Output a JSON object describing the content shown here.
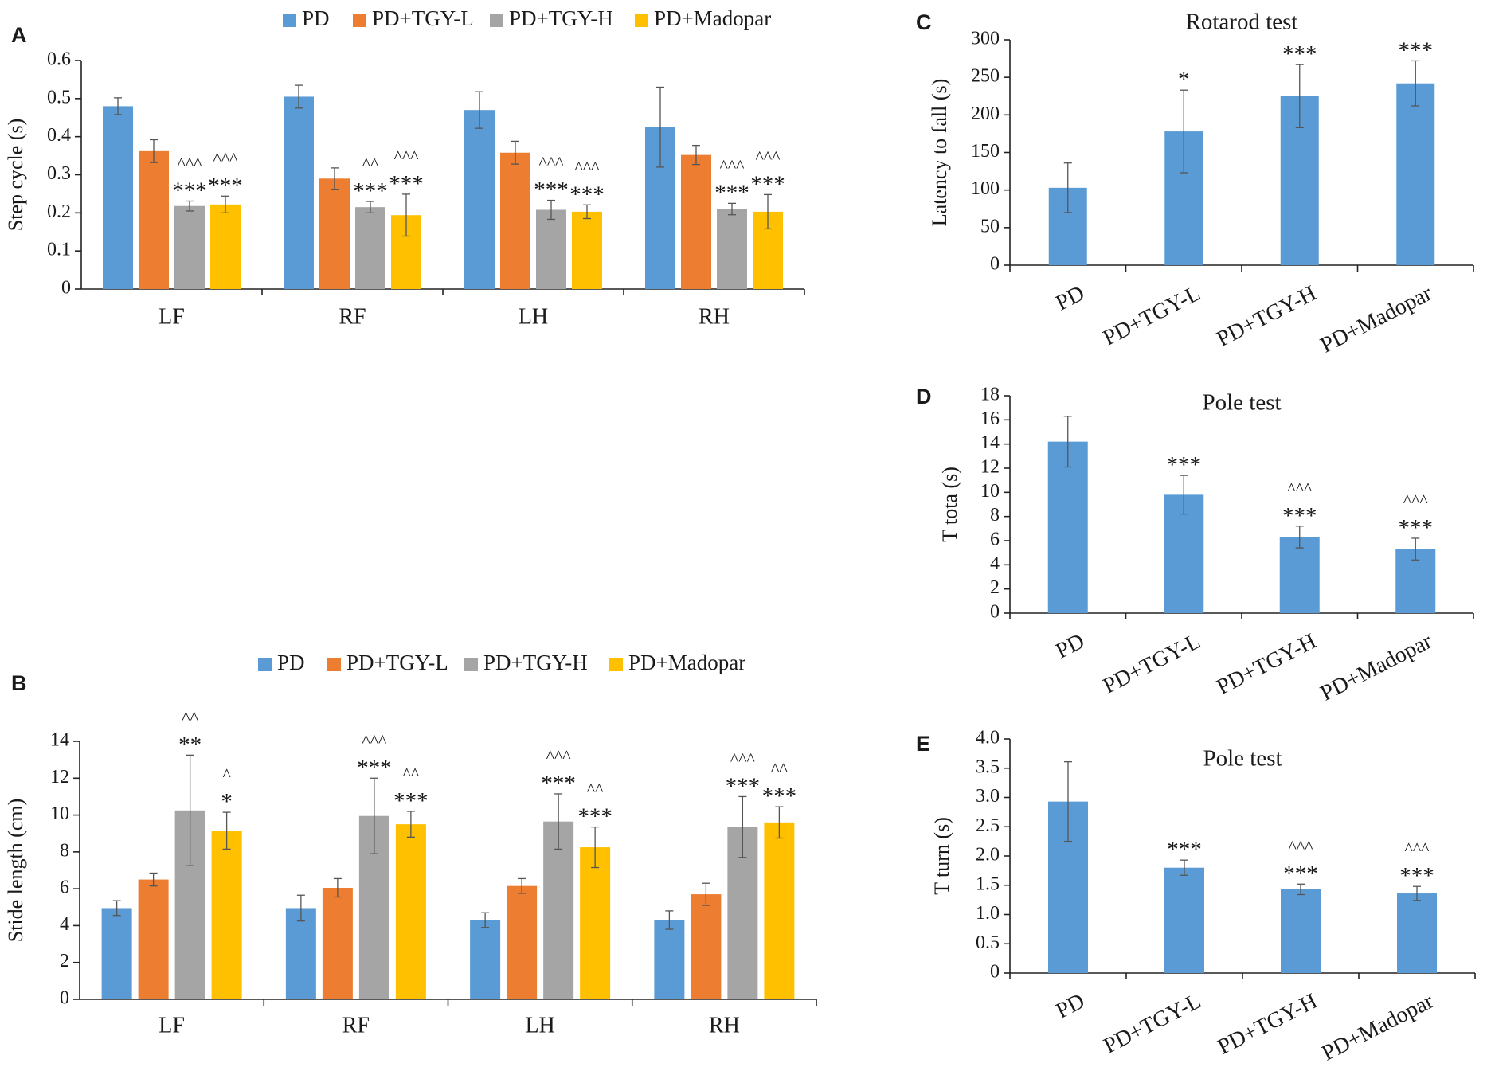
{
  "colors": {
    "PD": "#5B9BD5",
    "PD+TGY-L": "#ED7D31",
    "PD+TGY-H": "#A5A5A5",
    "PD+Madopar": "#FFC000",
    "axis": "#222222",
    "errorbar": "#555555"
  },
  "chart_data": [
    {
      "id": "A",
      "type": "bar",
      "panel_label": "A",
      "title": "",
      "ylabel": "Step cycle (s)",
      "xlabel": "",
      "ylim": [
        0,
        0.6
      ],
      "yticks": [
        0,
        0.1,
        0.2,
        0.3,
        0.4,
        0.5,
        0.6
      ],
      "ytick_labels": [
        "0",
        "0.1",
        "0.2",
        "0.3",
        "0.4",
        "0.5",
        "0.6"
      ],
      "categories": [
        "LF",
        "RF",
        "LH",
        "RH"
      ],
      "legend_position": "top",
      "grid": false,
      "series": [
        {
          "name": "PD",
          "values": [
            0.48,
            0.505,
            0.47,
            0.425
          ],
          "errors": [
            0.022,
            0.03,
            0.048,
            0.105
          ],
          "marks": [
            [
              "",
              ""
            ],
            [
              "",
              ""
            ],
            [
              "",
              ""
            ],
            [
              "",
              ""
            ]
          ]
        },
        {
          "name": "PD+TGY-L",
          "values": [
            0.362,
            0.29,
            0.358,
            0.352
          ],
          "errors": [
            0.03,
            0.028,
            0.03,
            0.025
          ],
          "marks": [
            [
              "",
              ""
            ],
            [
              "",
              ""
            ],
            [
              "",
              ""
            ],
            [
              "",
              ""
            ]
          ]
        },
        {
          "name": "PD+TGY-H",
          "values": [
            0.218,
            0.215,
            0.208,
            0.21
          ],
          "errors": [
            0.013,
            0.015,
            0.025,
            0.015
          ],
          "marks": [
            [
              "***",
              "^^^"
            ],
            [
              "***",
              "^^"
            ],
            [
              "***",
              "^^^"
            ],
            [
              "***",
              "^^^"
            ]
          ]
        },
        {
          "name": "PD+Madopar",
          "values": [
            0.222,
            0.194,
            0.203,
            0.203
          ],
          "errors": [
            0.022,
            0.055,
            0.018,
            0.045
          ],
          "marks": [
            [
              "***",
              "^^^"
            ],
            [
              "***",
              "^^^"
            ],
            [
              "***",
              "^^^"
            ],
            [
              "***",
              "^^^"
            ]
          ]
        }
      ]
    },
    {
      "id": "B",
      "type": "bar",
      "panel_label": "B",
      "title": "",
      "ylabel": "Stide length (cm)",
      "xlabel": "",
      "ylim": [
        0,
        14
      ],
      "yticks": [
        0,
        2,
        4,
        6,
        8,
        10,
        12,
        14
      ],
      "ytick_labels": [
        "0",
        "2",
        "4",
        "6",
        "8",
        "10",
        "12",
        "14"
      ],
      "categories": [
        "LF",
        "RF",
        "LH",
        "RH"
      ],
      "legend_position": "top",
      "grid": false,
      "series": [
        {
          "name": "PD",
          "values": [
            4.95,
            4.95,
            4.3,
            4.3
          ],
          "errors": [
            0.4,
            0.7,
            0.4,
            0.5
          ],
          "marks": [
            [
              "",
              ""
            ],
            [
              "",
              ""
            ],
            [
              "",
              ""
            ],
            [
              "",
              ""
            ]
          ]
        },
        {
          "name": "PD+TGY-L",
          "values": [
            6.5,
            6.05,
            6.15,
            5.7
          ],
          "errors": [
            0.35,
            0.5,
            0.4,
            0.6
          ],
          "marks": [
            [
              "",
              ""
            ],
            [
              "",
              ""
            ],
            [
              "",
              ""
            ],
            [
              "",
              ""
            ]
          ]
        },
        {
          "name": "PD+TGY-H",
          "values": [
            10.25,
            9.95,
            9.65,
            9.35
          ],
          "errors": [
            3.0,
            2.05,
            1.5,
            1.65
          ],
          "marks": [
            [
              "**",
              "^^"
            ],
            [
              "***",
              "^^^"
            ],
            [
              "***",
              "^^^"
            ],
            [
              "***",
              "^^^"
            ]
          ]
        },
        {
          "name": "PD+Madopar",
          "values": [
            9.15,
            9.5,
            8.25,
            9.6
          ],
          "errors": [
            1.0,
            0.7,
            1.1,
            0.85
          ],
          "marks": [
            [
              "*",
              "^"
            ],
            [
              "***",
              "^^"
            ],
            [
              "***",
              "^^"
            ],
            [
              "***",
              "^^"
            ]
          ]
        }
      ]
    },
    {
      "id": "C",
      "type": "bar",
      "panel_label": "C",
      "title": "Rotarod test",
      "ylabel": "Latency to fall (s)",
      "xlabel": "",
      "ylim": [
        0,
        300
      ],
      "yticks": [
        0,
        50,
        100,
        150,
        200,
        250,
        300
      ],
      "ytick_labels": [
        "0",
        "50",
        "100",
        "150",
        "200",
        "250",
        "300"
      ],
      "categories": [
        "PD",
        "PD+TGY-L",
        "PD+TGY-H",
        "PD+Madopar"
      ],
      "grid": false,
      "values": [
        103,
        178,
        225,
        242
      ],
      "errors": [
        33,
        55,
        42,
        30
      ],
      "marks": [
        [
          "",
          ""
        ],
        [
          "*",
          ""
        ],
        [
          "***",
          ""
        ],
        [
          "***",
          ""
        ]
      ]
    },
    {
      "id": "D",
      "type": "bar",
      "panel_label": "D",
      "title": "Pole test",
      "ylabel": "T tota (s)",
      "xlabel": "",
      "ylim": [
        0,
        18
      ],
      "yticks": [
        0,
        2,
        4,
        6,
        8,
        10,
        12,
        14,
        16,
        18
      ],
      "ytick_labels": [
        "0",
        "2",
        "4",
        "6",
        "8",
        "10",
        "12",
        "14",
        "16",
        "18"
      ],
      "categories": [
        "PD",
        "PD+TGY-L",
        "PD+TGY-H",
        "PD+Madopar"
      ],
      "grid": false,
      "values": [
        14.2,
        9.8,
        6.3,
        5.3
      ],
      "errors": [
        2.1,
        1.6,
        0.9,
        0.9
      ],
      "marks": [
        [
          "",
          ""
        ],
        [
          "***",
          ""
        ],
        [
          "***",
          "^^^"
        ],
        [
          "***",
          "^^^"
        ]
      ]
    },
    {
      "id": "E",
      "type": "bar",
      "panel_label": "E",
      "title": "Pole test",
      "ylabel": "T turn (s)",
      "xlabel": "",
      "ylim": [
        0,
        4.0
      ],
      "yticks": [
        0,
        0.5,
        1.0,
        1.5,
        2.0,
        2.5,
        3.0,
        3.5,
        4.0
      ],
      "ytick_labels": [
        "0",
        "0.5",
        "1.0",
        "1.5",
        "2.0",
        "2.5",
        "3.0",
        "3.5",
        "4.0"
      ],
      "categories": [
        "PD",
        "PD+TGY-L",
        "PD+TGY-H",
        "PD+Madopar"
      ],
      "grid": false,
      "values": [
        2.93,
        1.8,
        1.43,
        1.36
      ],
      "errors": [
        0.68,
        0.13,
        0.09,
        0.12
      ],
      "marks": [
        [
          "",
          ""
        ],
        [
          "***",
          ""
        ],
        [
          "***",
          "^^^"
        ],
        [
          "***",
          "^^^"
        ]
      ]
    }
  ]
}
